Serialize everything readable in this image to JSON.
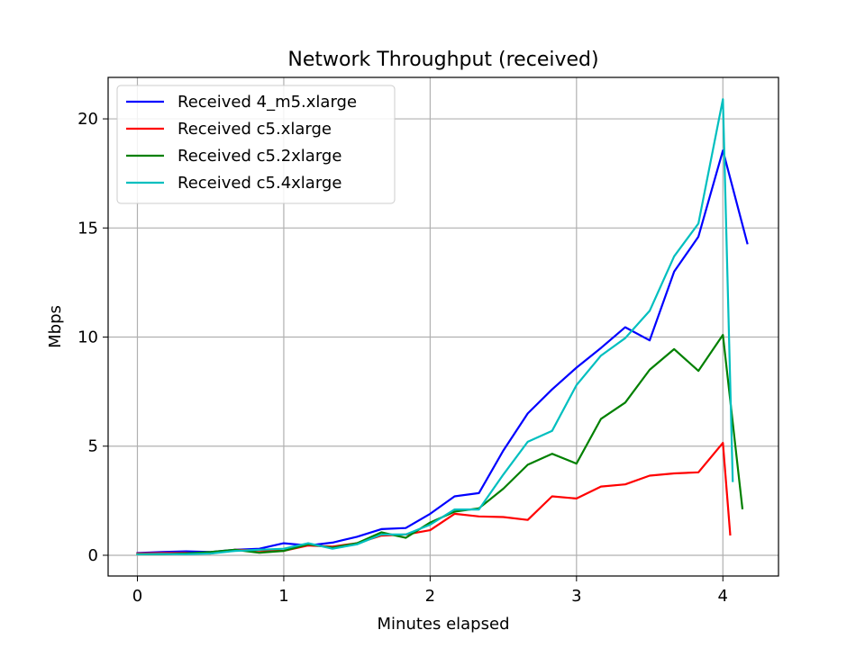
{
  "chart_data": {
    "type": "line",
    "title": "Network Throughput (received)",
    "xlabel": "Minutes elapsed",
    "ylabel": "Mbps",
    "xlim": [
      -0.2,
      4.38
    ],
    "ylim": [
      -0.95,
      21.9
    ],
    "xticks": [
      0,
      1,
      2,
      3,
      4
    ],
    "yticks": [
      0,
      5,
      10,
      15,
      20
    ],
    "grid": true,
    "legend_position": "upper left",
    "series": [
      {
        "name": "Received 4_m5.xlarge",
        "color": "#0000ff",
        "x": [
          0,
          0.167,
          0.333,
          0.5,
          0.667,
          0.833,
          1.0,
          1.167,
          1.333,
          1.5,
          1.667,
          1.833,
          2.0,
          2.167,
          2.333,
          2.5,
          2.667,
          2.833,
          3.0,
          3.167,
          3.333,
          3.5,
          3.667,
          3.833,
          4.0,
          4.167
        ],
        "y": [
          0.1,
          0.15,
          0.18,
          0.15,
          0.25,
          0.3,
          0.55,
          0.45,
          0.58,
          0.85,
          1.2,
          1.25,
          1.9,
          2.7,
          2.85,
          4.8,
          6.5,
          7.6,
          8.6,
          9.5,
          10.45,
          9.85,
          13.0,
          14.6,
          18.55,
          14.3
        ]
      },
      {
        "name": "Received c5.xlarge",
        "color": "#ff0000",
        "x": [
          0,
          0.167,
          0.333,
          0.5,
          0.667,
          0.833,
          1.0,
          1.167,
          1.333,
          1.5,
          1.667,
          1.833,
          2.0,
          2.167,
          2.333,
          2.5,
          2.667,
          2.833,
          3.0,
          3.167,
          3.333,
          3.5,
          3.667,
          3.833,
          4.0,
          4.05
        ],
        "y": [
          0.08,
          0.1,
          0.1,
          0.08,
          0.25,
          0.22,
          0.2,
          0.45,
          0.4,
          0.55,
          0.9,
          0.95,
          1.15,
          1.9,
          1.78,
          1.75,
          1.62,
          2.7,
          2.6,
          3.15,
          3.25,
          3.65,
          3.75,
          3.8,
          5.15,
          0.95
        ]
      },
      {
        "name": "Received c5.2xlarge",
        "color": "#008000",
        "x": [
          0,
          0.167,
          0.333,
          0.5,
          0.667,
          0.833,
          1.0,
          1.167,
          1.333,
          1.5,
          1.667,
          1.833,
          2.0,
          2.167,
          2.333,
          2.5,
          2.667,
          2.833,
          3.0,
          3.167,
          3.333,
          3.5,
          3.667,
          3.833,
          4.0,
          4.133
        ],
        "y": [
          0.05,
          0.05,
          0.08,
          0.15,
          0.25,
          0.12,
          0.2,
          0.5,
          0.35,
          0.55,
          1.05,
          0.8,
          1.5,
          2.0,
          2.15,
          3.05,
          4.15,
          4.65,
          4.2,
          6.25,
          7.0,
          8.5,
          9.45,
          8.45,
          10.1,
          2.15
        ]
      },
      {
        "name": "Received c5.4xlarge",
        "color": "#00bfbf",
        "x": [
          0,
          0.167,
          0.333,
          0.5,
          0.667,
          0.833,
          1.0,
          1.167,
          1.333,
          1.5,
          1.667,
          1.833,
          2.0,
          2.167,
          2.333,
          2.5,
          2.667,
          2.833,
          3.0,
          3.167,
          3.333,
          3.5,
          3.667,
          3.833,
          4.0,
          4.067
        ],
        "y": [
          0.05,
          0.06,
          0.05,
          0.08,
          0.2,
          0.25,
          0.3,
          0.55,
          0.3,
          0.5,
          0.95,
          0.95,
          1.4,
          2.1,
          2.1,
          3.7,
          5.2,
          5.7,
          7.8,
          9.15,
          9.95,
          11.2,
          13.7,
          15.2,
          20.9,
          3.4
        ]
      }
    ]
  }
}
